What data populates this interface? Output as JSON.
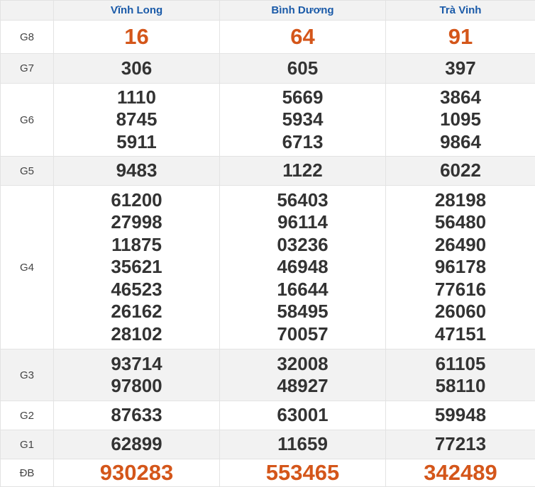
{
  "provinces": [
    "Vĩnh Long",
    "Bình Dương",
    "Trà Vinh"
  ],
  "colors": {
    "header_text": "#1a5aa8",
    "highlight": "#d4561a",
    "number": "#333333",
    "alt_row": "#f2f2f2"
  },
  "rows": [
    {
      "label": "G8",
      "highlight": true,
      "values": [
        [
          "16"
        ],
        [
          "64"
        ],
        [
          "91"
        ]
      ]
    },
    {
      "label": "G7",
      "values": [
        [
          "306"
        ],
        [
          "605"
        ],
        [
          "397"
        ]
      ]
    },
    {
      "label": "G6",
      "values": [
        [
          "1110",
          "8745",
          "5911"
        ],
        [
          "5669",
          "5934",
          "6713"
        ],
        [
          "3864",
          "1095",
          "9864"
        ]
      ]
    },
    {
      "label": "G5",
      "values": [
        [
          "9483"
        ],
        [
          "1122"
        ],
        [
          "6022"
        ]
      ]
    },
    {
      "label": "G4",
      "values": [
        [
          "61200",
          "27998",
          "11875",
          "35621",
          "46523",
          "26162",
          "28102"
        ],
        [
          "56403",
          "96114",
          "03236",
          "46948",
          "16644",
          "58495",
          "70057"
        ],
        [
          "28198",
          "56480",
          "26490",
          "96178",
          "77616",
          "26060",
          "47151"
        ]
      ]
    },
    {
      "label": "G3",
      "values": [
        [
          "93714",
          "97800"
        ],
        [
          "32008",
          "48927"
        ],
        [
          "61105",
          "58110"
        ]
      ]
    },
    {
      "label": "G2",
      "values": [
        [
          "87633"
        ],
        [
          "63001"
        ],
        [
          "59948"
        ]
      ]
    },
    {
      "label": "G1",
      "values": [
        [
          "62899"
        ],
        [
          "11659"
        ],
        [
          "77213"
        ]
      ]
    },
    {
      "label": "ĐB",
      "highlight": true,
      "values": [
        [
          "930283"
        ],
        [
          "553465"
        ],
        [
          "342489"
        ]
      ]
    }
  ]
}
